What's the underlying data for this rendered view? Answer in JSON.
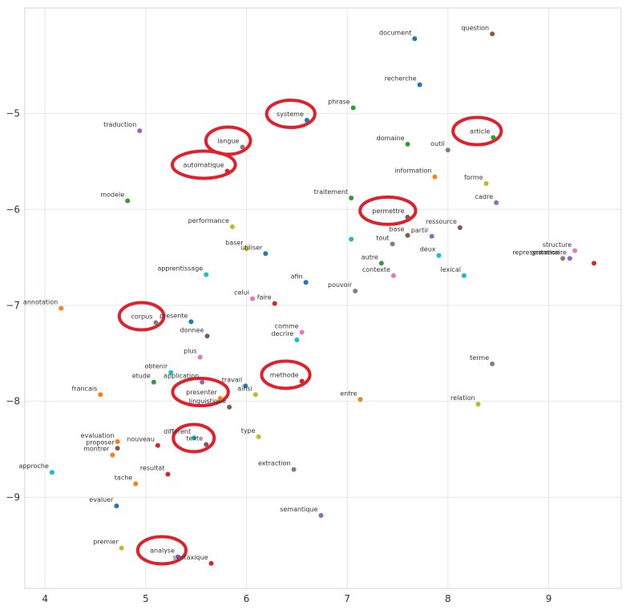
{
  "chart_data": {
    "type": "scatter",
    "title": "",
    "xlabel": "",
    "ylabel": "",
    "xlim": [
      3.8,
      9.72
    ],
    "ylim": [
      -9.95,
      -3.9
    ],
    "xticks": [
      4,
      5,
      6,
      7,
      8,
      9
    ],
    "yticks": [
      -5,
      -6,
      -7,
      -8,
      -9
    ],
    "grid": true,
    "points": [
      {
        "label": "document",
        "x": 7.67,
        "y": -4.22,
        "color": "#1f77b4"
      },
      {
        "label": "question",
        "x": 8.44,
        "y": -4.17,
        "color": "#8c564b"
      },
      {
        "label": "recherche",
        "x": 7.72,
        "y": -4.7,
        "color": "#1f77b4"
      },
      {
        "label": "phrase",
        "x": 7.06,
        "y": -4.94,
        "color": "#2ca02c"
      },
      {
        "label": "systeme",
        "x": 6.6,
        "y": -5.07,
        "color": "#1f77b4"
      },
      {
        "label": "traduction",
        "x": 4.94,
        "y": -5.18,
        "color": "#9467bd"
      },
      {
        "label": "article",
        "x": 8.45,
        "y": -5.25,
        "color": "#2ca02c"
      },
      {
        "label": "langue",
        "x": 5.96,
        "y": -5.35,
        "color": "#7f7f7f"
      },
      {
        "label": "domaine",
        "x": 7.6,
        "y": -5.32,
        "color": "#2ca02c"
      },
      {
        "label": "outil",
        "x": 8.0,
        "y": -5.38,
        "color": "#7f7f7f"
      },
      {
        "label": "automatique",
        "x": 5.81,
        "y": -5.6,
        "color": "#d62728"
      },
      {
        "label": "information",
        "x": 7.87,
        "y": -5.66,
        "color": "#ff7f0e"
      },
      {
        "label": "forme",
        "x": 8.38,
        "y": -5.73,
        "color": "#bcbd22"
      },
      {
        "label": "modele",
        "x": 4.82,
        "y": -5.91,
        "color": "#2ca02c"
      },
      {
        "label": "traitement",
        "x": 7.04,
        "y": -5.88,
        "color": "#2ca02c"
      },
      {
        "label": "cadre",
        "x": 8.48,
        "y": -5.93,
        "color": "#9467bd"
      },
      {
        "label": "permettre",
        "x": 7.6,
        "y": -6.08,
        "color": "#8c564b"
      },
      {
        "label": "performance",
        "x": 5.86,
        "y": -6.18,
        "color": "#bcbd22"
      },
      {
        "label": "ressource",
        "x": 8.12,
        "y": -6.19,
        "color": "#8c564b"
      },
      {
        "label": "base",
        "x": 7.6,
        "y": -6.27,
        "color": "#8c564b"
      },
      {
        "label": "partir",
        "x": 7.84,
        "y": -6.28,
        "color": "#9467bd"
      },
      {
        "label": "tout",
        "x": 7.45,
        "y": -6.36,
        "color": "#7f7f7f"
      },
      {
        "label": "",
        "x": 7.04,
        "y": -6.31,
        "color": "#17becf"
      },
      {
        "label": "baser",
        "x": 6.0,
        "y": -6.41,
        "color": "#bcbd22"
      },
      {
        "label": "utiliser",
        "x": 6.19,
        "y": -6.46,
        "color": "#1f77b4"
      },
      {
        "label": "deux",
        "x": 7.91,
        "y": -6.48,
        "color": "#17becf"
      },
      {
        "label": "structure",
        "x": 9.26,
        "y": -6.43,
        "color": "#e377c2"
      },
      {
        "label": "representation",
        "x": 9.14,
        "y": -6.51,
        "color": "#7f7f7f"
      },
      {
        "label": "grammaire",
        "x": 9.21,
        "y": -6.51,
        "color": "#9467bd"
      },
      {
        "label": "",
        "x": 9.45,
        "y": -6.56,
        "color": "#d62728"
      },
      {
        "label": "autre",
        "x": 7.34,
        "y": -6.56,
        "color": "#2ca02c"
      },
      {
        "label": "apprentissage",
        "x": 5.6,
        "y": -6.68,
        "color": "#17becf"
      },
      {
        "label": "contexte",
        "x": 7.46,
        "y": -6.69,
        "color": "#e377c2"
      },
      {
        "label": "lexical",
        "x": 8.16,
        "y": -6.69,
        "color": "#17becf"
      },
      {
        "label": "afin",
        "x": 6.59,
        "y": -6.76,
        "color": "#1f77b4"
      },
      {
        "label": "pouvoir",
        "x": 7.08,
        "y": -6.85,
        "color": "#7f7f7f"
      },
      {
        "label": "celui",
        "x": 6.06,
        "y": -6.93,
        "color": "#e377c2"
      },
      {
        "label": "faire",
        "x": 6.28,
        "y": -6.98,
        "color": "#d62728"
      },
      {
        "label": "annotation",
        "x": 4.16,
        "y": -7.03,
        "color": "#ff7f0e"
      },
      {
        "label": "corpus",
        "x": 5.1,
        "y": -7.18,
        "color": "#7f7f7f"
      },
      {
        "label": "presente",
        "x": 5.45,
        "y": -7.17,
        "color": "#1f77b4"
      },
      {
        "label": "comme",
        "x": 6.55,
        "y": -7.28,
        "color": "#e377c2"
      },
      {
        "label": "donnee",
        "x": 5.61,
        "y": -7.32,
        "color": "#8c564b"
      },
      {
        "label": "decrire",
        "x": 6.5,
        "y": -7.36,
        "color": "#17becf"
      },
      {
        "label": "plus",
        "x": 5.54,
        "y": -7.54,
        "color": "#e377c2"
      },
      {
        "label": "terme",
        "x": 8.44,
        "y": -7.61,
        "color": "#7f7f7f"
      },
      {
        "label": "obtenir",
        "x": 5.25,
        "y": -7.7,
        "color": "#17becf"
      },
      {
        "label": "etude",
        "x": 5.08,
        "y": -7.8,
        "color": "#2ca02c"
      },
      {
        "label": "application",
        "x": 5.56,
        "y": -7.8,
        "color": "#9467bd"
      },
      {
        "label": "methode",
        "x": 6.55,
        "y": -7.79,
        "color": "#d62728"
      },
      {
        "label": "travail",
        "x": 5.99,
        "y": -7.84,
        "color": "#1f77b4"
      },
      {
        "label": "ainsi",
        "x": 6.09,
        "y": -7.93,
        "color": "#bcbd22"
      },
      {
        "label": "francais",
        "x": 4.55,
        "y": -7.93,
        "color": "#ff7f0e"
      },
      {
        "label": "presenter",
        "x": 5.74,
        "y": -7.97,
        "color": "#ff7f0e"
      },
      {
        "label": "entre",
        "x": 7.13,
        "y": -7.98,
        "color": "#ff7f0e"
      },
      {
        "label": "relation",
        "x": 8.3,
        "y": -8.03,
        "color": "#bcbd22"
      },
      {
        "label": "linguistique",
        "x": 5.83,
        "y": -8.06,
        "color": "#8c564b"
      },
      {
        "label": "type",
        "x": 6.12,
        "y": -8.37,
        "color": "#bcbd22"
      },
      {
        "label": "different",
        "x": 5.48,
        "y": -8.38,
        "color": "#17becf"
      },
      {
        "label": "evaluation",
        "x": 4.72,
        "y": -8.42,
        "color": "#ff7f0e"
      },
      {
        "label": "texte",
        "x": 5.6,
        "y": -8.45,
        "color": "#8c564b"
      },
      {
        "label": "nouveau",
        "x": 5.12,
        "y": -8.46,
        "color": "#d62728"
      },
      {
        "label": "proposer",
        "x": 4.72,
        "y": -8.49,
        "color": "#8c564b"
      },
      {
        "label": "montrer",
        "x": 4.67,
        "y": -8.56,
        "color": "#ff7f0e"
      },
      {
        "label": "approche",
        "x": 4.07,
        "y": -8.74,
        "color": "#17becf"
      },
      {
        "label": "extraction",
        "x": 6.47,
        "y": -8.71,
        "color": "#7f7f7f"
      },
      {
        "label": "resultat",
        "x": 5.22,
        "y": -8.76,
        "color": "#d62728"
      },
      {
        "label": "tache",
        "x": 4.9,
        "y": -8.86,
        "color": "#ff7f0e"
      },
      {
        "label": "evaluer",
        "x": 4.71,
        "y": -9.09,
        "color": "#1f77b4"
      },
      {
        "label": "semantique",
        "x": 6.74,
        "y": -9.19,
        "color": "#9467bd"
      },
      {
        "label": "premier",
        "x": 4.76,
        "y": -9.53,
        "color": "#bcbd22"
      },
      {
        "label": "analyse",
        "x": 5.32,
        "y": -9.62,
        "color": "#9467bd"
      },
      {
        "label": "syntaxique",
        "x": 5.65,
        "y": -9.69,
        "color": "#d62728"
      }
    ],
    "highlighted": [
      "systeme",
      "langue",
      "automatique",
      "article",
      "permettre",
      "corpus",
      "methode",
      "presenter",
      "texte",
      "analyse"
    ]
  },
  "highlight_color": "#e0202a"
}
